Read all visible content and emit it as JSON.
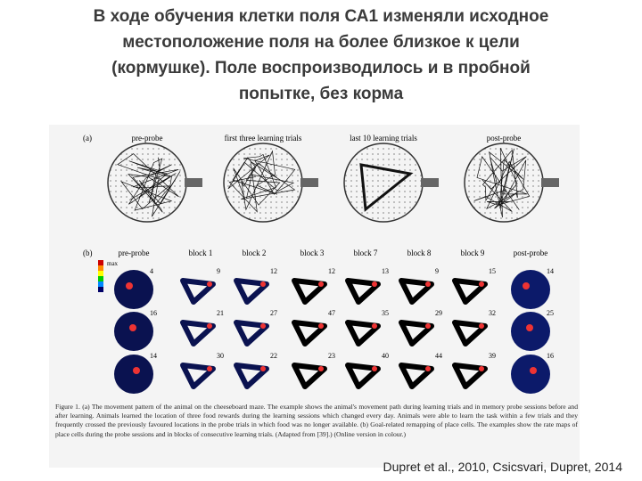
{
  "title_lines": [
    "В ходе обучения клетки поля СА1 изменяли исходное",
    "местоположение поля на более близкое к цели",
    "(кормушке). Поле воспроизводилось и в пробной",
    "попытке, без корма"
  ],
  "figure": {
    "panel_a": {
      "label": "(a)",
      "headers": [
        "pre-probe",
        "first three learning trials",
        "last 10 learning trials",
        "post-probe"
      ]
    },
    "panel_b": {
      "label": "(b)",
      "scale_max": "max",
      "headers": [
        "pre-probe",
        "block 1",
        "block 2",
        "block 3",
        "block 7",
        "block 8",
        "block 9",
        "post-probe"
      ],
      "rows": [
        [
          4,
          9,
          12,
          12,
          13,
          9,
          15,
          14
        ],
        [
          16,
          21,
          27,
          47,
          35,
          29,
          32,
          25
        ],
        [
          14,
          30,
          22,
          23,
          40,
          44,
          39,
          16
        ]
      ]
    },
    "caption": "Figure 1. (a) The movement pattern of the animal on the cheeseboard maze. The example shows the animal's movement path during learning trials and in memory probe sessions before and after learning. Animals learned the location of three food rewards during the learning sessions which changed every day. Animals were able to learn the task within a few trials and they frequently crossed the previously favoured locations in the probe trials in which food was no longer available. (b) Goal-related remapping of place cells. The examples show the rate maps of place cells during the probe sessions and in blocks of consecutive learning trials. (Adapted from [39].) (Online version in colour.)"
  },
  "citation": "Dupret et al., 2010, Csicsvari, Dupret, 2014"
}
